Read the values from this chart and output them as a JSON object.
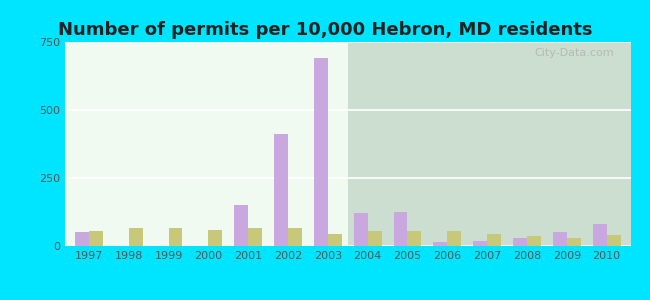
{
  "title": "Number of permits per 10,000 Hebron, MD residents",
  "years": [
    1997,
    1998,
    1999,
    2000,
    2001,
    2002,
    2003,
    2004,
    2005,
    2006,
    2007,
    2008,
    2009,
    2010
  ],
  "hebron": [
    50,
    0,
    0,
    0,
    150,
    410,
    690,
    120,
    125,
    15,
    20,
    30,
    50,
    80
  ],
  "maryland": [
    55,
    65,
    65,
    60,
    65,
    65,
    45,
    55,
    55,
    55,
    45,
    35,
    30,
    40
  ],
  "hebron_color": "#c9a8e0",
  "maryland_color": "#c8c87a",
  "outer_bg": "#00e5ff",
  "ylim": [
    0,
    750
  ],
  "yticks": [
    0,
    250,
    500,
    750
  ],
  "title_fontsize": 13,
  "bar_width": 0.35
}
